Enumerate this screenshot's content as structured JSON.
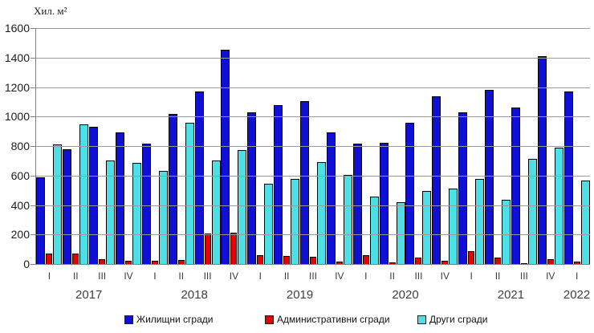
{
  "chart_data": {
    "type": "bar",
    "title": "",
    "ylabel": "Хил. м²",
    "xlabel": "",
    "ylim": [
      0,
      1600
    ],
    "y_ticks": [
      0,
      200,
      400,
      600,
      800,
      1000,
      1200,
      1400,
      1600
    ],
    "grid": "horizontal-gray",
    "legend_position": "bottom",
    "x_quarter_labels": [
      "I",
      "II",
      "III",
      "IV",
      "I",
      "II",
      "III",
      "IV",
      "I",
      "II",
      "III",
      "IV",
      "I",
      "II",
      "III",
      "IV",
      "I",
      "II",
      "III",
      "IV",
      "I"
    ],
    "x_year_labels": [
      {
        "label": "2017",
        "start": 0,
        "end": 3
      },
      {
        "label": "2018",
        "start": 4,
        "end": 7
      },
      {
        "label": "2019",
        "start": 8,
        "end": 11
      },
      {
        "label": "2020",
        "start": 12,
        "end": 15
      },
      {
        "label": "2021",
        "start": 16,
        "end": 19
      },
      {
        "label": "2022",
        "start": 20,
        "end": 20
      }
    ],
    "series": [
      {
        "name": "Жилищни сгради",
        "color": "#0f0fd6",
        "values": [
          595,
          785,
          935,
          900,
          820,
          1025,
          1175,
          1460,
          1035,
          1085,
          1110,
          900,
          820,
          825,
          965,
          1145,
          1035,
          1185,
          1065,
          1415,
          1175
        ]
      },
      {
        "name": "Административни сгради",
        "color": "#e60000",
        "values": [
          75,
          75,
          40,
          30,
          30,
          35,
          210,
          220,
          65,
          60,
          55,
          20,
          65,
          15,
          50,
          30,
          95,
          50,
          5,
          40,
          20
        ]
      },
      {
        "name": "Други сгради",
        "color": "#4ddfe6",
        "values": [
          815,
          950,
          710,
          690,
          635,
          965,
          710,
          780,
          550,
          585,
          695,
          610,
          465,
          425,
          500,
          515,
          580,
          440,
          720,
          795,
          570
        ]
      }
    ]
  }
}
